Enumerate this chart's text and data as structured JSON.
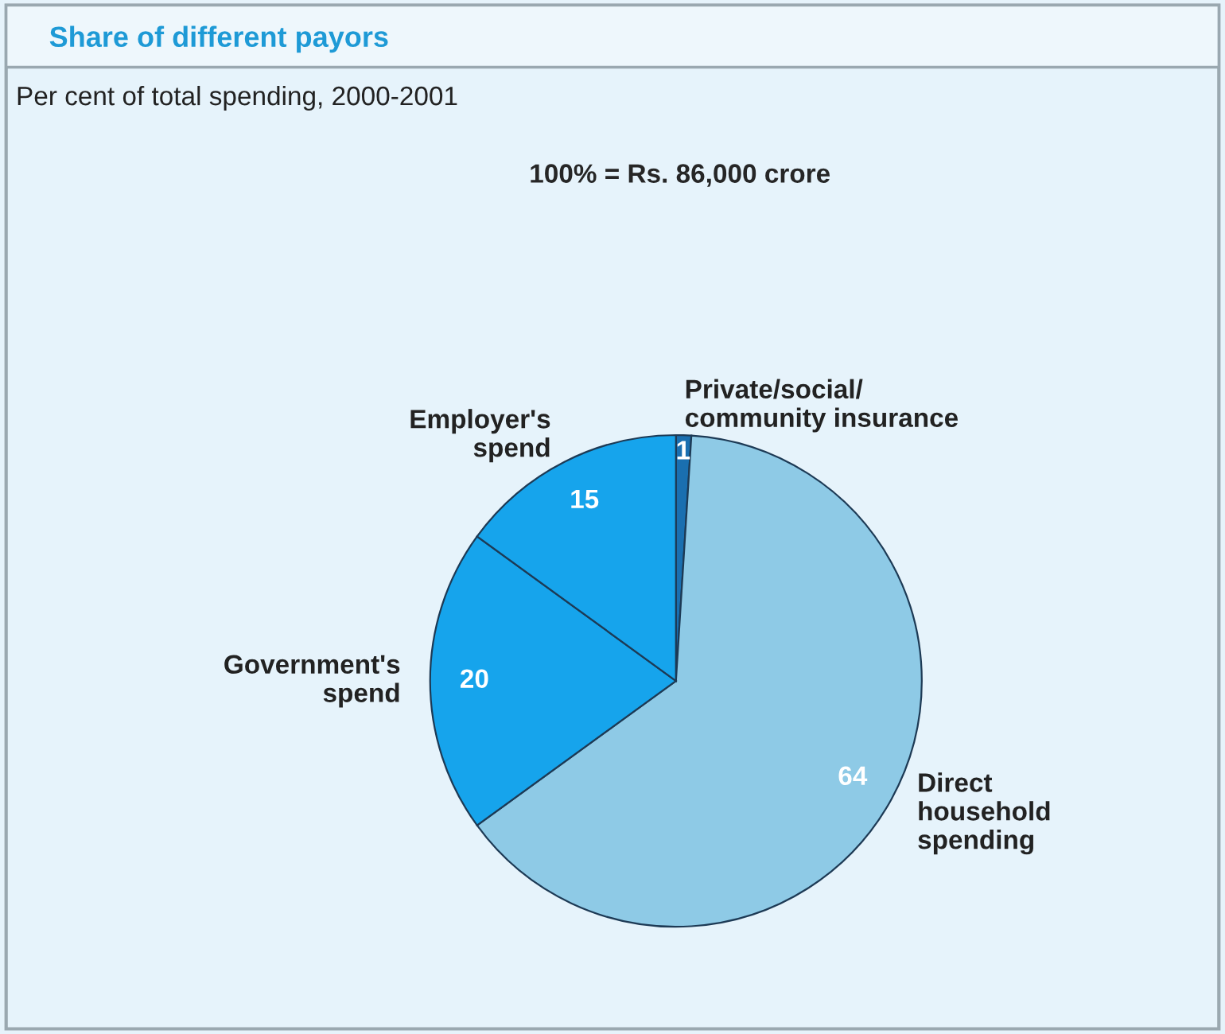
{
  "chart_data": {
    "type": "pie",
    "title": "Share of different payors",
    "subtitle": "Per cent of total spending, 2000-2001",
    "annotations": [
      "100% = Rs. 86,000 crore"
    ],
    "categories": [
      "Private/social/\ncommunity insurance",
      "Direct\nhousehold\nspending",
      "Government's\nspend",
      "Employer's\nspend"
    ],
    "values": [
      1,
      64,
      20,
      15
    ],
    "colors": [
      "#1a6fb0",
      "#8ecae6",
      "#16a4ec",
      "#16a4ec"
    ],
    "data_labels": true,
    "legend": false
  }
}
